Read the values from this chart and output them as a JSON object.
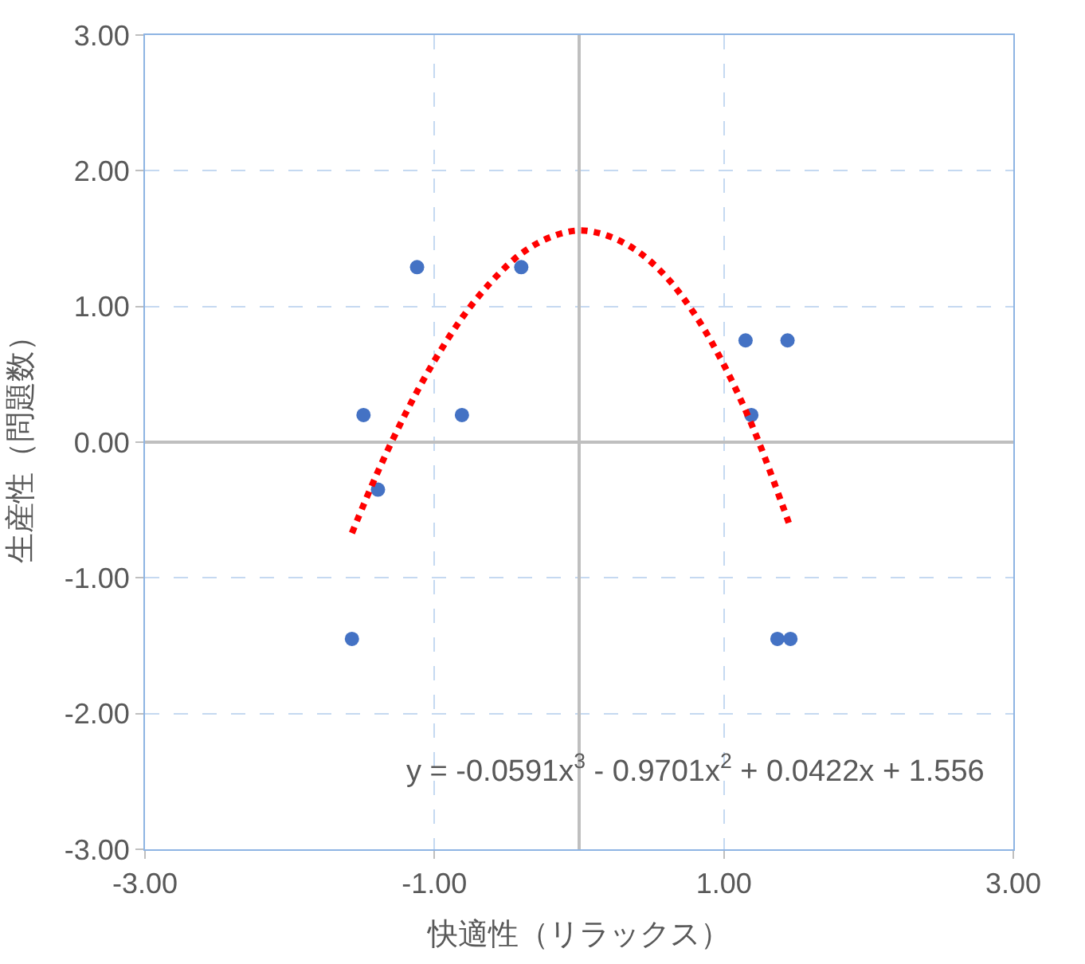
{
  "chart_data": {
    "type": "scatter",
    "xlabel": "快適性（リラックス）",
    "ylabel": "生産性（問題数）",
    "xlim": [
      -3,
      3
    ],
    "ylim": [
      -3,
      3
    ],
    "xticks": [
      {
        "value": -3,
        "label": "-3.00"
      },
      {
        "value": -1,
        "label": "-1.00"
      },
      {
        "value": 1,
        "label": "1.00"
      },
      {
        "value": 3,
        "label": "3.00"
      }
    ],
    "yticks": [
      {
        "value": -3,
        "label": "-3.00"
      },
      {
        "value": -2,
        "label": "-2.00"
      },
      {
        "value": -1,
        "label": "-1.00"
      },
      {
        "value": 0,
        "label": "0.00"
      },
      {
        "value": 1,
        "label": "1.00"
      },
      {
        "value": 2,
        "label": "2.00"
      },
      {
        "value": 3,
        "label": "3.00"
      }
    ],
    "grid": true,
    "series": [
      {
        "color": "#4472c4",
        "marker": "circle",
        "x": [
          -1.49,
          -1.39,
          -1.12,
          -0.81,
          -0.4,
          -1.57,
          1.15,
          1.44,
          1.19,
          1.37,
          1.46
        ],
        "values": [
          0.2,
          -0.35,
          1.29,
          0.2,
          1.29,
          -1.45,
          0.75,
          0.75,
          0.2,
          -1.45,
          -1.45
        ]
      },
      {
        "type": "line",
        "color": "#ff0000",
        "line_style": "dotted",
        "marker": "none",
        "x": [
          -1.57,
          -1.4,
          -1.2,
          -1.0,
          -0.8,
          -0.6,
          -0.4,
          -0.2,
          0,
          0.2,
          0.4,
          0.6,
          0.8,
          1.0,
          1.2,
          1.4,
          1.46
        ],
        "values": [
          -0.67,
          -0.24,
          0.21,
          0.6,
          0.93,
          1.19,
          1.39,
          1.51,
          1.56,
          1.52,
          1.41,
          1.22,
          0.94,
          0.57,
          0.11,
          -0.45,
          -0.63
        ]
      }
    ],
    "annotations": [
      "y = -0.0591x$^{3}$ - 0.9701x$^{2}$ + 0.0422x + 1.556"
    ]
  }
}
